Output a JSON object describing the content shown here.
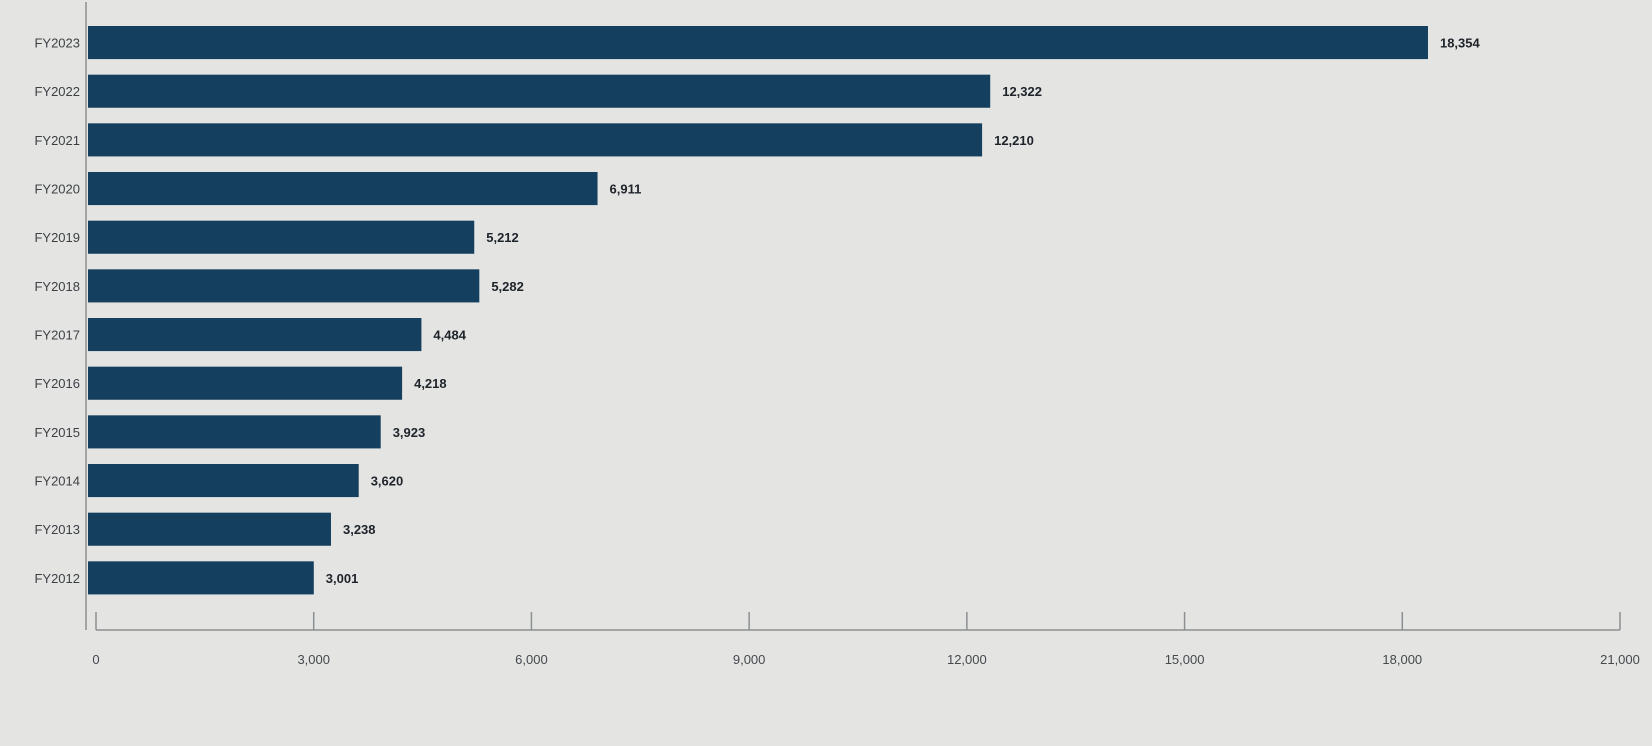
{
  "chart_data": {
    "type": "bar",
    "orientation": "horizontal",
    "title": "",
    "xlabel": "",
    "ylabel": "",
    "categories": [
      "FY2023",
      "FY2022",
      "FY2021",
      "FY2020",
      "FY2019",
      "FY2018",
      "FY2017",
      "FY2016",
      "FY2015",
      "FY2014",
      "FY2013",
      "FY2012"
    ],
    "values": [
      18354,
      12322,
      12210,
      6911,
      5212,
      5282,
      4484,
      4218,
      3923,
      3620,
      3238,
      3001
    ],
    "value_labels": [
      "18,354",
      "12,322",
      "12,210",
      "6,911",
      "5,212",
      "5,282",
      "4,484",
      "4,218",
      "3,923",
      "3,620",
      "3,238",
      "3,001"
    ],
    "xlim": [
      0,
      21000
    ],
    "xticks": [
      0,
      3000,
      6000,
      9000,
      12000,
      15000,
      18000,
      21000
    ],
    "xtick_labels": [
      "0",
      "3,000",
      "6,000",
      "9,000",
      "12,000",
      "15,000",
      "18,000",
      "21,000"
    ],
    "grid": false,
    "legend": "none",
    "bar_color": "#143f5e",
    "axis_color": "#8c8f92"
  }
}
